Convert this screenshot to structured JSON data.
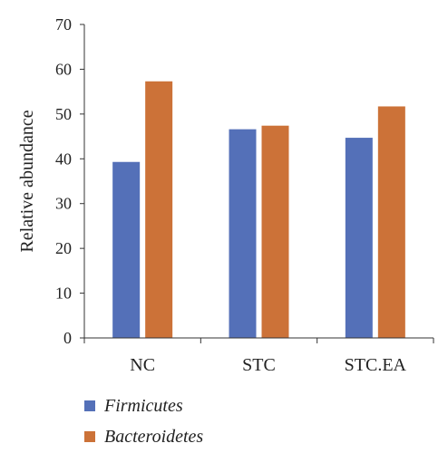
{
  "chart_data": {
    "type": "bar",
    "categories": [
      "NC",
      "STC",
      "STC.EA"
    ],
    "series": [
      {
        "name": "Firmicutes",
        "values": [
          39.3,
          46.6,
          44.7
        ],
        "color": "#5470b8"
      },
      {
        "name": "Bacteroidetes",
        "values": [
          57.3,
          47.4,
          51.7
        ],
        "color": "#cc7238"
      }
    ],
    "title": "",
    "xlabel": "",
    "ylabel": "Relative abundance",
    "ylim": [
      0,
      70
    ],
    "yticks": [
      0,
      10,
      20,
      30,
      40,
      50,
      60,
      70
    ],
    "grid": false,
    "legend_position": "bottom-left"
  }
}
